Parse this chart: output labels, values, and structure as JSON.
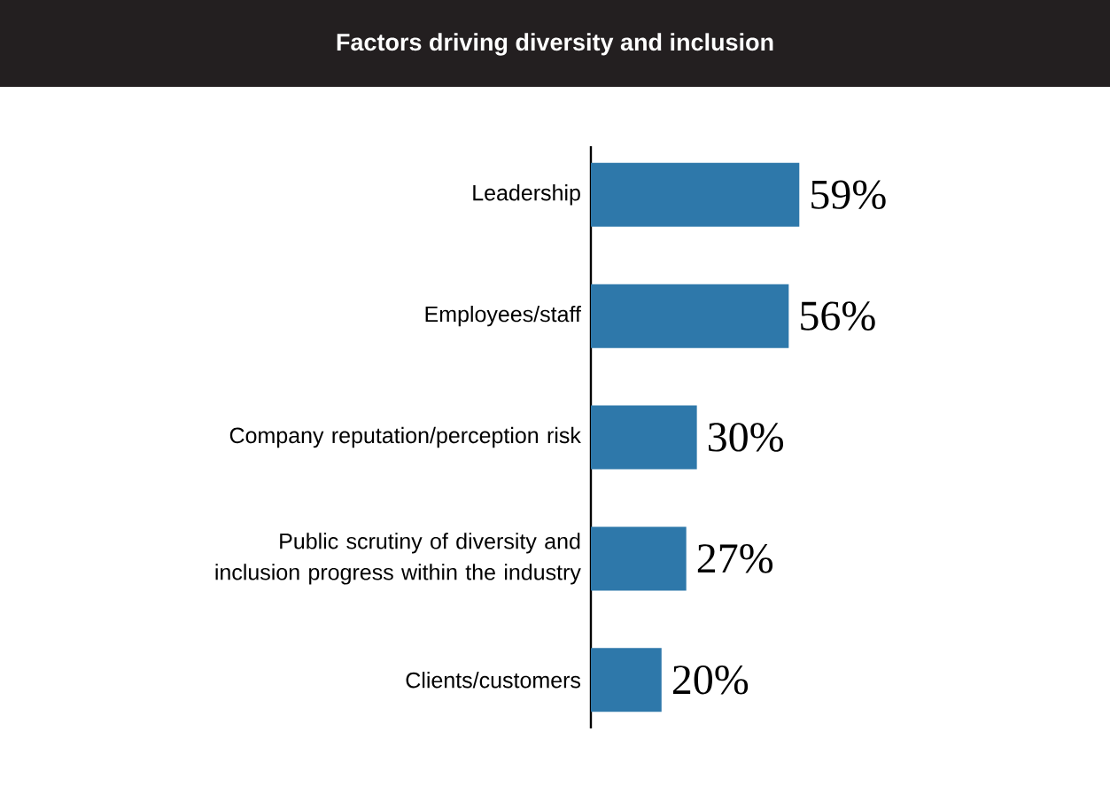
{
  "chart_data": {
    "type": "bar",
    "orientation": "horizontal",
    "title": "Factors driving diversity and inclusion",
    "categories": [
      "Leadership",
      "Employees/staff",
      "Company reputation/perception risk",
      "Public scrutiny of diversity and inclusion progress within the industry",
      "Clients/customers"
    ],
    "values": [
      59,
      56,
      30,
      27,
      20
    ],
    "value_labels": [
      "59%",
      "56%",
      "30%",
      "27%",
      "20%"
    ],
    "color": "#2e78aa"
  }
}
